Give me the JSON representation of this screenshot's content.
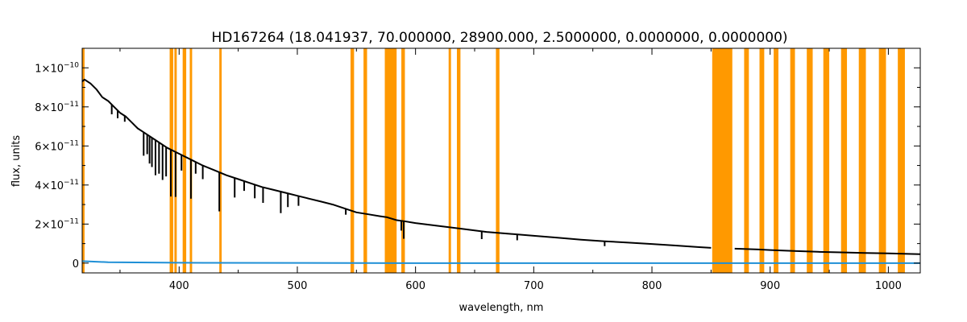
{
  "chart_data": {
    "type": "line",
    "title": "HD167264   (18.041937, 70.000000, 28900.000, 2.5000000, 0.0000000, 0.0000000)",
    "xlabel": "wavelength, nm",
    "ylabel": "flux, units",
    "xlim": [
      318,
      1027
    ],
    "ylim": [
      -5e-12,
      1.1e-10
    ],
    "xticks": [
      {
        "value": 400,
        "label": "400"
      },
      {
        "value": 500,
        "label": "500"
      },
      {
        "value": 600,
        "label": "600"
      },
      {
        "value": 700,
        "label": "700"
      },
      {
        "value": 800,
        "label": "800"
      },
      {
        "value": 900,
        "label": "900"
      },
      {
        "value": 1000,
        "label": "1000"
      }
    ],
    "yticks": [
      {
        "value": 0,
        "base": "0",
        "exp": ""
      },
      {
        "value": 2e-11,
        "base": "2×10",
        "exp": "−11"
      },
      {
        "value": 4e-11,
        "base": "4×10",
        "exp": "−11"
      },
      {
        "value": 6e-11,
        "base": "6×10",
        "exp": "−11"
      },
      {
        "value": 8e-11,
        "base": "8×10",
        "exp": "−11"
      },
      {
        "value": 1e-10,
        "base": "1×10",
        "exp": "−10"
      }
    ],
    "masked_bands_color": "#ff9900",
    "masked_bands": [
      [
        318,
        320
      ],
      [
        392,
        395
      ],
      [
        396,
        398
      ],
      [
        403,
        406
      ],
      [
        409,
        411
      ],
      [
        434,
        436
      ],
      [
        545,
        548
      ],
      [
        556,
        559
      ],
      [
        574,
        584
      ],
      [
        588,
        591
      ],
      [
        628,
        630
      ],
      [
        635,
        638
      ],
      [
        668,
        671
      ],
      [
        851,
        868
      ],
      [
        878,
        882
      ],
      [
        891,
        895
      ],
      [
        903,
        907
      ],
      [
        917,
        921
      ],
      [
        931,
        936
      ],
      [
        945,
        950
      ],
      [
        960,
        965
      ],
      [
        975,
        981
      ],
      [
        992,
        998
      ],
      [
        1008,
        1014
      ]
    ],
    "series": [
      {
        "color": "#000000",
        "line_width": 2,
        "x": [
          318,
          320,
          325,
          330,
          335,
          340,
          345,
          350,
          355,
          360,
          365,
          370,
          380,
          390,
          400,
          410,
          420,
          430,
          440,
          450,
          460,
          470,
          480,
          490,
          500,
          510,
          520,
          530,
          540,
          550,
          560,
          570,
          576,
          584,
          590,
          600,
          620,
          640,
          660,
          680,
          700,
          720,
          740,
          760,
          780,
          800,
          820,
          840,
          850,
          851,
          868,
          870,
          880,
          890,
          900,
          920,
          940,
          960,
          980,
          1000,
          1020,
          1027
        ],
        "y": [
          9.3e-11,
          9.4e-11,
          9.2e-11,
          8.9e-11,
          8.5e-11,
          8.3e-11,
          8e-11,
          7.7e-11,
          7.5e-11,
          7.2e-11,
          6.9e-11,
          6.7e-11,
          6.3e-11,
          5.9e-11,
          5.6e-11,
          5.3e-11,
          5e-11,
          4.75e-11,
          4.5e-11,
          4.3e-11,
          4.1e-11,
          3.9e-11,
          3.75e-11,
          3.6e-11,
          3.45e-11,
          3.3e-11,
          3.15e-11,
          3e-11,
          2.8e-11,
          2.6e-11,
          2.5e-11,
          2.4e-11,
          2.35e-11,
          2.2e-11,
          2.15e-11,
          2.05e-11,
          1.9e-11,
          1.75e-11,
          1.6e-11,
          1.5e-11,
          1.4e-11,
          1.3e-11,
          1.2e-11,
          1.12e-11,
          1.05e-11,
          9.8e-12,
          9e-12,
          8.2e-12,
          7.8e-12,
          null,
          null,
          7.4e-12,
          7.2e-12,
          7e-12,
          6.7e-12,
          6.2e-12,
          5.8e-12,
          5.5e-12,
          5.2e-12,
          5e-12,
          4.7e-12,
          4.6e-12
        ]
      },
      {
        "color": "#1e8fd6",
        "line_width": 2,
        "x": [
          318,
          340,
          400,
          600,
          800,
          1027
        ],
        "y": [
          1e-12,
          5e-13,
          2e-13,
          0.0,
          0.0,
          0.0
        ]
      }
    ],
    "absorption_lines": [
      {
        "x": 343,
        "depth": 5e-12
      },
      {
        "x": 348,
        "depth": 4e-12
      },
      {
        "x": 354,
        "depth": 3e-12
      },
      {
        "x": 370,
        "depth": 1.2e-11
      },
      {
        "x": 373,
        "depth": 1e-11
      },
      {
        "x": 375,
        "depth": 1.4e-11
      },
      {
        "x": 377,
        "depth": 1.5e-11
      },
      {
        "x": 380,
        "depth": 1.8e-11
      },
      {
        "x": 383,
        "depth": 1.6e-11
      },
      {
        "x": 386,
        "depth": 1.8e-11
      },
      {
        "x": 389,
        "depth": 1.5e-11
      },
      {
        "x": 393,
        "depth": 2.4e-11
      },
      {
        "x": 397,
        "depth": 2.3e-11
      },
      {
        "x": 402,
        "depth": 8e-12
      },
      {
        "x": 410,
        "depth": 2e-11
      },
      {
        "x": 414,
        "depth": 6e-12
      },
      {
        "x": 420,
        "depth": 7e-12
      },
      {
        "x": 434,
        "depth": 2e-11
      },
      {
        "x": 447,
        "depth": 1e-11
      },
      {
        "x": 455,
        "depth": 5e-12
      },
      {
        "x": 464,
        "depth": 7e-12
      },
      {
        "x": 471,
        "depth": 8e-12
      },
      {
        "x": 486,
        "depth": 1.1e-11
      },
      {
        "x": 492,
        "depth": 7e-12
      },
      {
        "x": 501,
        "depth": 5e-12
      },
      {
        "x": 541,
        "depth": 3e-12
      },
      {
        "x": 588,
        "depth": 5e-12
      },
      {
        "x": 590,
        "depth": 9e-12
      },
      {
        "x": 656,
        "depth": 4e-12
      },
      {
        "x": 686,
        "depth": 3e-12
      },
      {
        "x": 760,
        "depth": 2.5e-12
      }
    ]
  }
}
